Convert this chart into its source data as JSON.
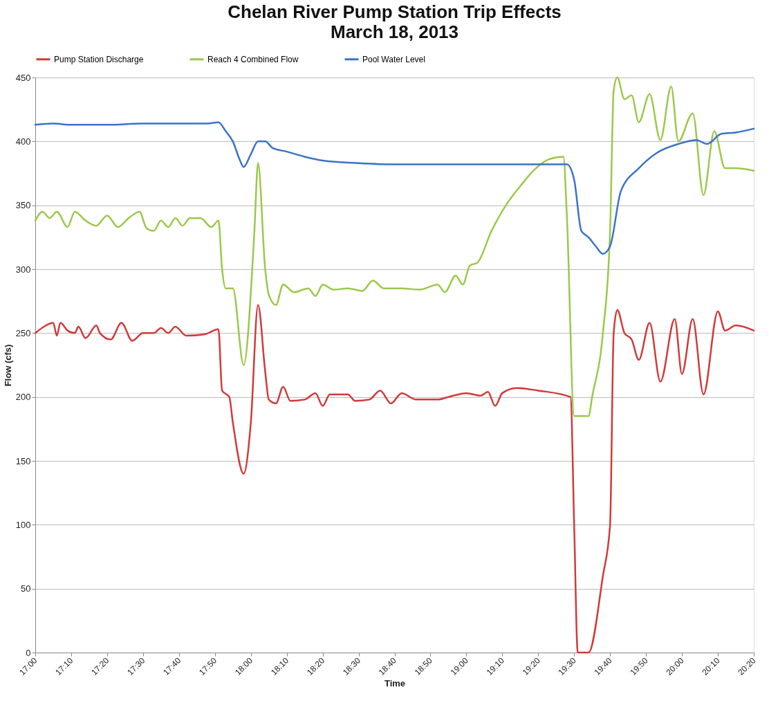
{
  "chart_data": {
    "type": "line",
    "title": "Chelan River Pump Station Trip Effects",
    "subtitle": "March 18, 2013",
    "xlabel": "Time",
    "ylabel": "Flow (cfs)",
    "series": [
      {
        "name": "Pump Station Discharge",
        "color": "#d03a3a",
        "x": [
          "2013-03-18T17:00",
          "2013-03-18T17:03",
          "2013-03-18T17:05",
          "2013-03-18T17:06",
          "2013-03-18T17:07",
          "2013-03-18T17:09",
          "2013-03-18T17:11",
          "2013-03-18T17:12",
          "2013-03-18T17:14",
          "2013-03-18T17:17",
          "2013-03-18T17:18",
          "2013-03-18T17:21",
          "2013-03-18T17:24",
          "2013-03-18T17:27",
          "2013-03-18T17:30",
          "2013-03-18T17:33",
          "2013-03-18T17:35",
          "2013-03-18T17:37",
          "2013-03-18T17:39",
          "2013-03-18T17:42",
          "2013-03-18T17:47",
          "2013-03-18T17:51",
          "2013-03-18T17:52",
          "2013-03-18T17:54",
          "2013-03-18T17:55",
          "2013-03-18T17:58",
          "2013-03-18T18:00",
          "2013-03-18T18:02",
          "2013-03-18T18:04",
          "2013-03-18T18:05",
          "2013-03-18T18:07",
          "2013-03-18T18:09",
          "2013-03-18T18:11",
          "2013-03-18T18:15",
          "2013-03-18T18:18",
          "2013-03-18T18:20",
          "2013-03-18T18:22",
          "2013-03-18T18:27",
          "2013-03-18T18:29",
          "2013-03-18T18:33",
          "2013-03-18T18:36",
          "2013-03-18T18:39",
          "2013-03-18T18:42",
          "2013-03-18T18:46",
          "2013-03-18T18:52",
          "2013-03-18T18:55",
          "2013-03-18T19:00",
          "2013-03-18T19:04",
          "2013-03-18T19:06",
          "2013-03-18T19:08",
          "2013-03-18T19:10",
          "2013-03-18T19:14",
          "2013-03-18T19:20",
          "2013-03-18T19:29",
          "2013-03-18T19:30",
          "2013-03-18T19:31",
          "2013-03-18T19:34",
          "2013-03-18T19:38",
          "2013-03-18T19:40",
          "2013-03-18T19:41",
          "2013-03-18T19:42",
          "2013-03-18T19:44",
          "2013-03-18T19:46",
          "2013-03-18T19:48",
          "2013-03-18T19:51",
          "2013-03-18T19:54",
          "2013-03-18T19:58",
          "2013-03-18T20:00",
          "2013-03-18T20:03",
          "2013-03-18T20:06",
          "2013-03-18T20:10",
          "2013-03-18T20:12",
          "2013-03-18T20:15",
          "2013-03-18T20:20"
        ],
        "values": [
          250,
          256,
          258,
          248,
          258,
          252,
          250,
          255,
          246,
          256,
          250,
          245,
          258,
          244,
          250,
          250,
          254,
          250,
          255,
          248,
          249,
          253,
          205,
          200,
          180,
          140,
          180,
          272,
          220,
          198,
          195,
          208,
          197,
          198,
          203,
          193,
          202,
          202,
          197,
          198,
          205,
          195,
          203,
          198,
          198,
          200,
          203,
          201,
          204,
          193,
          203,
          207,
          205,
          200,
          100,
          0,
          0,
          60,
          100,
          250,
          268,
          250,
          245,
          229,
          258,
          212,
          261,
          218,
          261,
          202,
          267,
          252,
          256,
          252
        ]
      },
      {
        "name": "Reach 4 Combined Flow",
        "color": "#9bc84a",
        "x": [
          "2013-03-18T17:00",
          "2013-03-18T17:02",
          "2013-03-18T17:04",
          "2013-03-18T17:06",
          "2013-03-18T17:09",
          "2013-03-18T17:11",
          "2013-03-18T17:14",
          "2013-03-18T17:17",
          "2013-03-18T17:20",
          "2013-03-18T17:23",
          "2013-03-18T17:26",
          "2013-03-18T17:29",
          "2013-03-18T17:31",
          "2013-03-18T17:33",
          "2013-03-18T17:35",
          "2013-03-18T17:37",
          "2013-03-18T17:39",
          "2013-03-18T17:41",
          "2013-03-18T17:43",
          "2013-03-18T17:46",
          "2013-03-18T17:49",
          "2013-03-18T17:51",
          "2013-03-18T17:52",
          "2013-03-18T17:53",
          "2013-03-18T17:55",
          "2013-03-18T17:58",
          "2013-03-18T18:01",
          "2013-03-18T18:02",
          "2013-03-18T18:04",
          "2013-03-18T18:05",
          "2013-03-18T18:07",
          "2013-03-18T18:09",
          "2013-03-18T18:12",
          "2013-03-18T18:16",
          "2013-03-18T18:18",
          "2013-03-18T18:20",
          "2013-03-18T18:23",
          "2013-03-18T18:27",
          "2013-03-18T18:31",
          "2013-03-18T18:34",
          "2013-03-18T18:37",
          "2013-03-18T18:42",
          "2013-03-18T18:47",
          "2013-03-18T18:52",
          "2013-03-18T18:54",
          "2013-03-18T18:57",
          "2013-03-18T18:59",
          "2013-03-18T19:01",
          "2013-03-18T19:03",
          "2013-03-18T19:07",
          "2013-03-18T19:11",
          "2013-03-18T19:15",
          "2013-03-18T19:19",
          "2013-03-18T19:23",
          "2013-03-18T19:27",
          "2013-03-18T19:28",
          "2013-03-18T19:30",
          "2013-03-18T19:34",
          "2013-03-18T19:35",
          "2013-03-18T19:38",
          "2013-03-18T19:40",
          "2013-03-18T19:41",
          "2013-03-18T19:42",
          "2013-03-18T19:44",
          "2013-03-18T19:46",
          "2013-03-18T19:48",
          "2013-03-18T19:51",
          "2013-03-18T19:54",
          "2013-03-18T19:57",
          "2013-03-18T19:59",
          "2013-03-18T20:03",
          "2013-03-18T20:06",
          "2013-03-18T20:09",
          "2013-03-18T20:12",
          "2013-03-18T20:15",
          "2013-03-18T20:20"
        ],
        "values": [
          338,
          345,
          340,
          345,
          333,
          345,
          338,
          334,
          342,
          333,
          340,
          345,
          332,
          330,
          338,
          333,
          340,
          334,
          340,
          340,
          333,
          338,
          300,
          285,
          285,
          225,
          330,
          383,
          300,
          280,
          272,
          288,
          282,
          285,
          279,
          288,
          284,
          285,
          283,
          291,
          285,
          285,
          284,
          288,
          282,
          295,
          288,
          303,
          305,
          330,
          350,
          365,
          378,
          386,
          388,
          340,
          185,
          185,
          200,
          250,
          330,
          440,
          450,
          433,
          436,
          415,
          437,
          401,
          443,
          400,
          422,
          358,
          408,
          379,
          379,
          377
        ]
      },
      {
        "name": "Pool Water Level",
        "color": "#3a72c8",
        "x": [
          "2013-03-18T17:00",
          "2013-03-18T17:05",
          "2013-03-18T17:10",
          "2013-03-18T17:20",
          "2013-03-18T17:30",
          "2013-03-18T17:40",
          "2013-03-18T17:48",
          "2013-03-18T17:51",
          "2013-03-18T17:53",
          "2013-03-18T17:55",
          "2013-03-18T17:57",
          "2013-03-18T17:58",
          "2013-03-18T18:00",
          "2013-03-18T18:02",
          "2013-03-18T18:04",
          "2013-03-18T18:06",
          "2013-03-18T18:10",
          "2013-03-18T18:15",
          "2013-03-18T18:20",
          "2013-03-18T18:30",
          "2013-03-18T18:40",
          "2013-03-18T18:50",
          "2013-03-18T19:00",
          "2013-03-18T19:10",
          "2013-03-18T19:20",
          "2013-03-18T19:28",
          "2013-03-18T19:30",
          "2013-03-18T19:32",
          "2013-03-18T19:34",
          "2013-03-18T19:36",
          "2013-03-18T19:38",
          "2013-03-18T19:40",
          "2013-03-18T19:43",
          "2013-03-18T19:48",
          "2013-03-18T19:53",
          "2013-03-18T19:59",
          "2013-03-18T20:04",
          "2013-03-18T20:07",
          "2013-03-18T20:11",
          "2013-03-18T20:15",
          "2013-03-18T20:20"
        ],
        "values": [
          413,
          414,
          413,
          413,
          414,
          414,
          414,
          415,
          408,
          400,
          385,
          380,
          390,
          400,
          400,
          395,
          392,
          388,
          385,
          383,
          382,
          382,
          382,
          382,
          382,
          382,
          370,
          330,
          325,
          318,
          312,
          318,
          361,
          379,
          391,
          398,
          401,
          398,
          406,
          407,
          410
        ]
      }
    ],
    "xlim": [
      "2013-03-18T17:00",
      "2013-03-18T20:20"
    ],
    "xticks": [
      {
        "value": "2013-03-18T17:00",
        "label": "17:00"
      },
      {
        "value": "2013-03-18T17:10",
        "label": "17:10"
      },
      {
        "value": "2013-03-18T17:20",
        "label": "17:20"
      },
      {
        "value": "2013-03-18T17:30",
        "label": "17:30"
      },
      {
        "value": "2013-03-18T17:40",
        "label": "17:40"
      },
      {
        "value": "2013-03-18T17:50",
        "label": "17:50"
      },
      {
        "value": "2013-03-18T18:00",
        "label": "18:00"
      },
      {
        "value": "2013-03-18T18:10",
        "label": "18:10"
      },
      {
        "value": "2013-03-18T18:20",
        "label": "18:20"
      },
      {
        "value": "2013-03-18T18:30",
        "label": "18:30"
      },
      {
        "value": "2013-03-18T18:40",
        "label": "18:40"
      },
      {
        "value": "2013-03-18T18:50",
        "label": "18:50"
      },
      {
        "value": "2013-03-18T19:00",
        "label": "19:00"
      },
      {
        "value": "2013-03-18T19:10",
        "label": "19:10"
      },
      {
        "value": "2013-03-18T19:20",
        "label": "19:20"
      },
      {
        "value": "2013-03-18T19:30",
        "label": "19:30"
      },
      {
        "value": "2013-03-18T19:40",
        "label": "19:40"
      },
      {
        "value": "2013-03-18T19:50",
        "label": "19:50"
      },
      {
        "value": "2013-03-18T20:00",
        "label": "20:00"
      },
      {
        "value": "2013-03-18T20:10",
        "label": "20:10"
      },
      {
        "value": "2013-03-18T20:20",
        "label": "20:20"
      }
    ],
    "ylim": [
      0,
      450
    ],
    "yticks": [
      0,
      50,
      100,
      150,
      200,
      250,
      300,
      350,
      400,
      450
    ],
    "grid": "y",
    "legend": "top",
    "line_style": "solid"
  }
}
